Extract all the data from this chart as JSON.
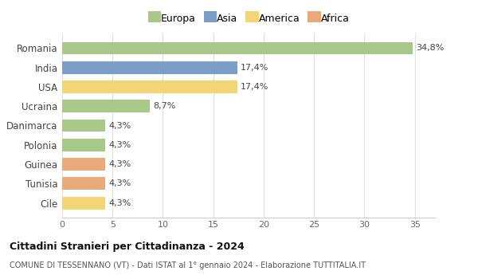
{
  "categories": [
    "Cile",
    "Tunisia",
    "Guinea",
    "Polonia",
    "Danimarca",
    "Ucraina",
    "USA",
    "India",
    "Romania"
  ],
  "values": [
    4.3,
    4.3,
    4.3,
    4.3,
    4.3,
    8.7,
    17.4,
    17.4,
    34.8
  ],
  "colors": [
    "#f2d479",
    "#e8aa7a",
    "#e8aa7a",
    "#a8c88a",
    "#a8c88a",
    "#a8c88a",
    "#f2d479",
    "#7b9ec8",
    "#a8c88a"
  ],
  "labels": [
    "4,3%",
    "4,3%",
    "4,3%",
    "4,3%",
    "4,3%",
    "8,7%",
    "17,4%",
    "17,4%",
    "34,8%"
  ],
  "legend_labels": [
    "Europa",
    "Asia",
    "America",
    "Africa"
  ],
  "legend_colors": [
    "#a8c88a",
    "#7b9ec8",
    "#f2d479",
    "#e8aa7a"
  ],
  "title": "Cittadini Stranieri per Cittadinanza - 2024",
  "subtitle": "COMUNE DI TESSENNANO (VT) - Dati ISTAT al 1° gennaio 2024 - Elaborazione TUTTITALIA.IT",
  "xlim": [
    0,
    37
  ],
  "xticks": [
    0,
    5,
    10,
    15,
    20,
    25,
    30,
    35
  ],
  "bg_color": "#ffffff",
  "plot_bg_color": "#ffffff",
  "grid_color": "#e0e0e0"
}
